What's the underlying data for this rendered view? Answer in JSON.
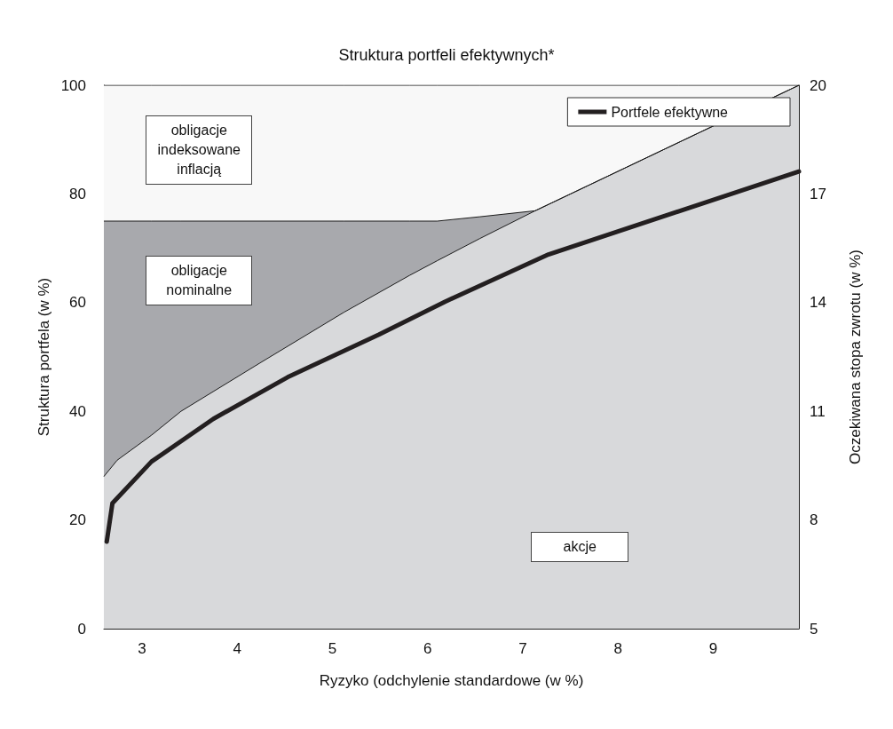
{
  "chart_data": {
    "type": "area",
    "title": "Struktura portfeli efektywnych*",
    "xlabel": "Ryzyko (odchylenie standardowe (w %)",
    "ylabel": "Struktura portfela (w %)",
    "y2label": "Oczekiwana stopa zwrotu (w %)",
    "x": [
      2.6,
      2.74,
      3.1,
      3.41,
      4.25,
      5.12,
      5.81,
      6.1,
      6.55,
      7.13,
      8.64,
      9.9
    ],
    "stacked": true,
    "series": [
      {
        "name": "akcje",
        "color": "#d8d9db",
        "values": [
          28,
          31,
          35.6,
          40,
          49,
          58.2,
          65,
          67.7,
          71.8,
          76.9,
          89.5,
          100
        ]
      },
      {
        "name": "obligacje nominalne",
        "color": "#a8a9ad",
        "values": [
          47,
          44,
          39.4,
          35,
          26,
          16.8,
          10,
          7.3,
          4,
          0,
          0,
          0
        ]
      },
      {
        "name": "obligacje indeksowane inflacją",
        "color": "#f8f8f8",
        "values": [
          25,
          25,
          25,
          25,
          25,
          25,
          25,
          25,
          24.2,
          23.1,
          10.5,
          0
        ]
      },
      {
        "name": "Portfele efektywne",
        "type": "line",
        "axis": "y2",
        "color": "#231f20",
        "x": [
          2.63,
          2.69,
          3.1,
          3.75,
          4.53,
          5.49,
          6.18,
          7.27,
          9.9
        ],
        "values": [
          7.4,
          8.46,
          9.61,
          10.79,
          11.94,
          13.12,
          14.02,
          15.33,
          17.62
        ]
      }
    ],
    "xlim": [
      2.6,
      9.9
    ],
    "xticks": [
      3,
      4,
      5,
      6,
      7,
      8,
      9
    ],
    "ylim": [
      0,
      100
    ],
    "yticks": [
      0,
      20,
      40,
      60,
      80,
      100
    ],
    "y2lim": [
      5,
      20
    ],
    "y2ticks": [
      5,
      8,
      11,
      14,
      17,
      20
    ],
    "legend": "top right",
    "marker": "none",
    "line_style": "solid"
  }
}
